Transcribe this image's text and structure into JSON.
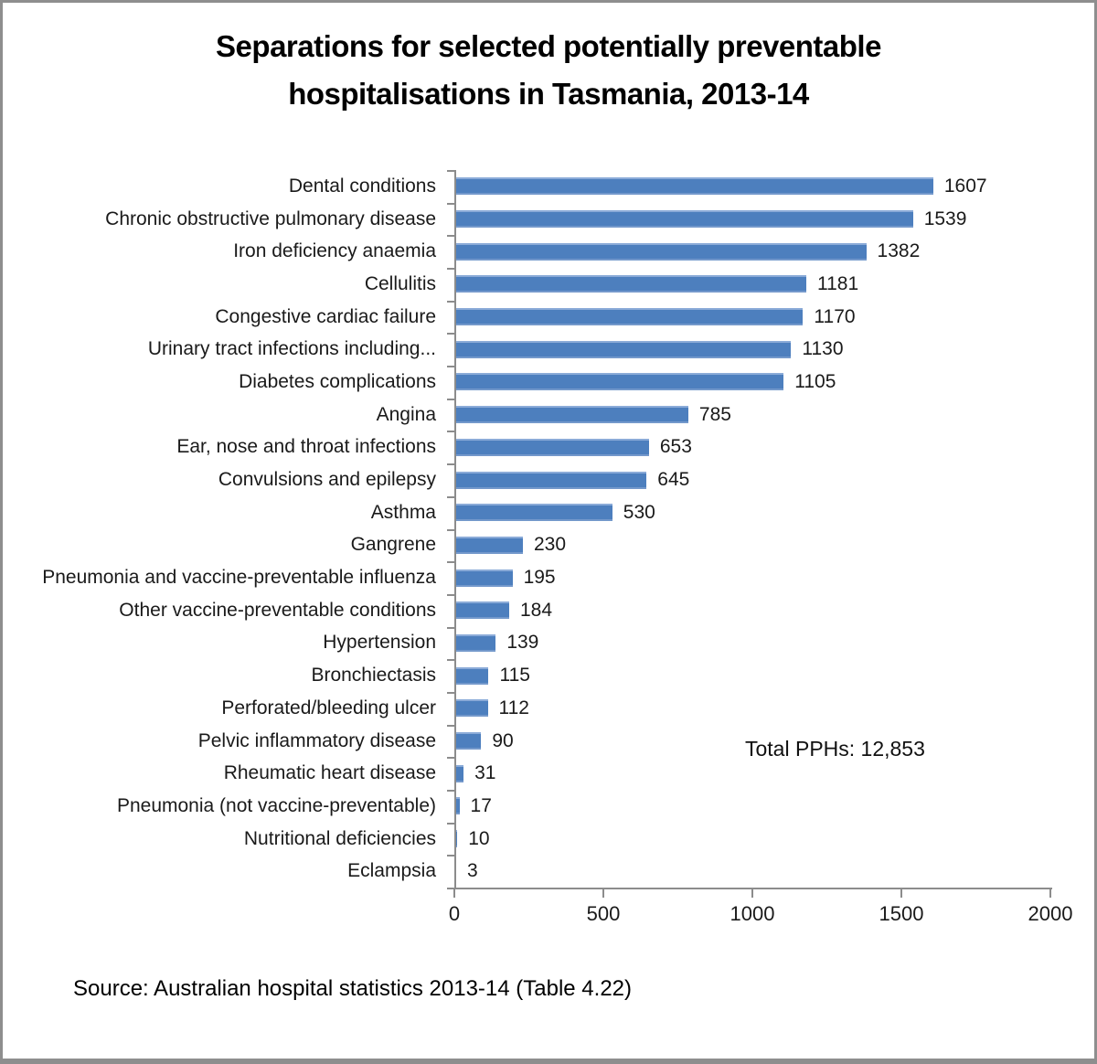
{
  "title": {
    "line1": "Separations for selected potentially preventable",
    "line2": "hospitalisations in Tasmania, 2013-14"
  },
  "chart_data": {
    "type": "bar",
    "orientation": "horizontal",
    "title": "Separations for selected potentially preventable hospitalisations in Tasmania, 2013-14",
    "categories": [
      "Dental conditions",
      "Chronic obstructive pulmonary disease",
      "Iron deficiency anaemia",
      "Cellulitis",
      "Congestive cardiac failure",
      "Urinary tract infections including...",
      "Diabetes complications",
      "Angina",
      "Ear, nose and throat infections",
      "Convulsions and epilepsy",
      "Asthma",
      "Gangrene",
      "Pneumonia and vaccine-preventable influenza",
      "Other vaccine-preventable conditions",
      "Hypertension",
      "Bronchiectasis",
      "Perforated/bleeding ulcer",
      "Pelvic inflammatory disease",
      "Rheumatic heart disease",
      "Pneumonia (not vaccine-preventable)",
      "Nutritional deficiencies",
      "Eclampsia"
    ],
    "values": [
      1607,
      1539,
      1382,
      1181,
      1170,
      1130,
      1105,
      785,
      653,
      645,
      530,
      230,
      195,
      184,
      139,
      115,
      112,
      90,
      31,
      17,
      10,
      3
    ],
    "xlim": [
      0,
      2000
    ],
    "x_tick_labels": [
      "0",
      "500",
      "1000",
      "1500",
      "2000"
    ],
    "grid": false,
    "legend": false,
    "data_labels": true,
    "bar_color": "#4d7fbe",
    "axis_color": "#8c8c8c",
    "annotation": "Total PPHs: 12,853"
  },
  "annotation": "Total PPHs: 12,853",
  "source": "Source: Australian hospital statistics 2013-14 (Table 4.22)"
}
